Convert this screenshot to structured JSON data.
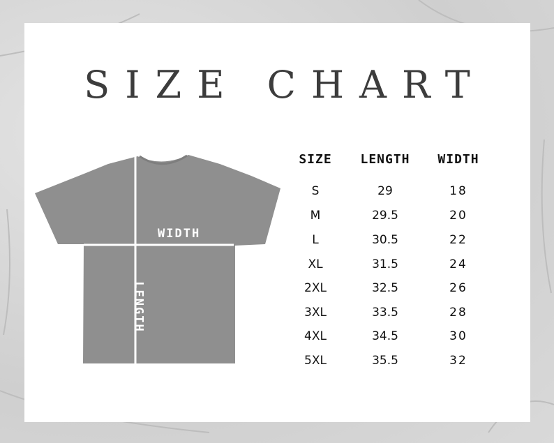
{
  "title": "SIZE CHART",
  "diagram": {
    "width_label": "WIDTH",
    "length_label": "LENGTH",
    "shirt_color": "#8f8f8f"
  },
  "table": {
    "headers": [
      "SIZE",
      "LENGTH",
      "WIDTH"
    ],
    "rows": [
      [
        "S",
        "29",
        "18"
      ],
      [
        "M",
        "29.5",
        "20"
      ],
      [
        "L",
        "30.5",
        "22"
      ],
      [
        "XL",
        "31.5",
        "24"
      ],
      [
        "2XL",
        "32.5",
        "26"
      ],
      [
        "3XL",
        "33.5",
        "28"
      ],
      [
        "4XL",
        "34.5",
        "30"
      ],
      [
        "5XL",
        "35.5",
        "32"
      ]
    ]
  }
}
